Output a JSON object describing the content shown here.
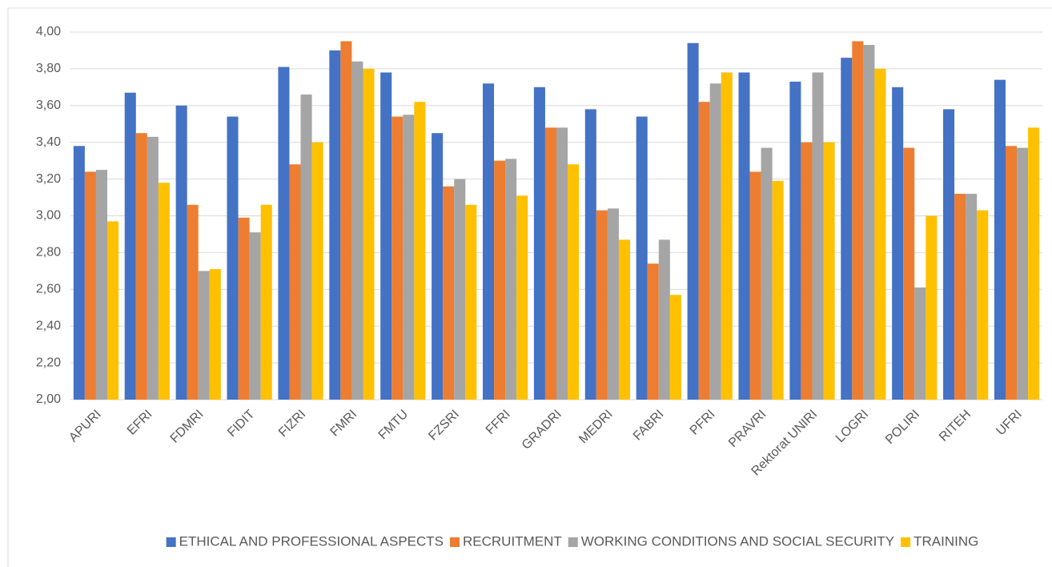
{
  "chart_data": {
    "type": "bar",
    "categories": [
      "APURI",
      "EFRI",
      "FDMRI",
      "FIDIT",
      "FIZRI",
      "FMRI",
      "FMTU",
      "FZSRI",
      "FFRI",
      "GRADRI",
      "MEDRI",
      "FABRI",
      "PFRI",
      "PRAVRI",
      "Rektorat UNIRI",
      "LOGRI",
      "POLIRI",
      "RITEH",
      "UFRI"
    ],
    "series": [
      {
        "name": "ETHICAL AND PROFESSIONAL ASPECTS",
        "color": "#4472c4",
        "values": [
          3.38,
          3.67,
          3.6,
          3.54,
          3.81,
          3.9,
          3.78,
          3.45,
          3.72,
          3.7,
          3.58,
          3.54,
          3.94,
          3.78,
          3.73,
          3.86,
          3.7,
          3.58,
          3.74
        ]
      },
      {
        "name": "RECRUITMENT",
        "color": "#ed7d31",
        "values": [
          3.24,
          3.45,
          3.06,
          2.99,
          3.28,
          3.95,
          3.54,
          3.16,
          3.3,
          3.48,
          3.03,
          2.74,
          3.62,
          3.24,
          3.4,
          3.95,
          3.37,
          3.12,
          3.38
        ]
      },
      {
        "name": "WORKING CONDITIONS AND SOCIAL SECURITY",
        "color": "#a5a5a5",
        "values": [
          3.25,
          3.43,
          2.7,
          2.91,
          3.66,
          3.84,
          3.55,
          3.2,
          3.31,
          3.48,
          3.04,
          2.87,
          3.72,
          3.37,
          3.78,
          3.93,
          2.61,
          3.12,
          3.37
        ]
      },
      {
        "name": "TRAINING",
        "color": "#ffc000",
        "values": [
          2.97,
          3.18,
          2.71,
          3.06,
          3.4,
          3.8,
          3.62,
          3.06,
          3.11,
          3.28,
          2.87,
          2.57,
          3.78,
          3.19,
          3.4,
          3.8,
          3.0,
          3.03,
          3.48
        ]
      }
    ],
    "ylim": [
      2,
      4
    ],
    "yticks": [
      {
        "value": 2,
        "label": "2,00"
      },
      {
        "value": 2.2,
        "label": "2,20"
      },
      {
        "value": 2.4,
        "label": "2,40"
      },
      {
        "value": 2.6,
        "label": "2,60"
      },
      {
        "value": 2.8,
        "label": "2,80"
      },
      {
        "value": 3,
        "label": "3,00"
      },
      {
        "value": 3.2,
        "label": "3,20"
      },
      {
        "value": 3.4,
        "label": "3,40"
      },
      {
        "value": 3.6,
        "label": "3,60"
      },
      {
        "value": 3.8,
        "label": "3,80"
      },
      {
        "value": 4,
        "label": "4,00"
      }
    ],
    "grid": true,
    "legend": "bottom"
  }
}
